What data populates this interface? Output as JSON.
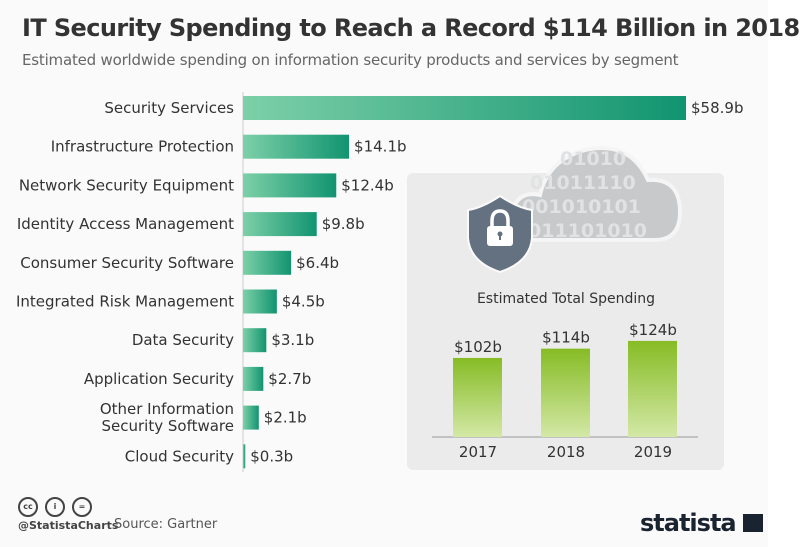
{
  "title": "IT Security Spending to Reach a Record $114 Billion in 2018",
  "subtitle": "Estimated worldwide spending on information security products and services by segment",
  "chart_data": [
    {
      "type": "bar",
      "orientation": "horizontal",
      "categories": [
        "Security Services",
        "Infrastructure Protection",
        "Network Security Equipment",
        "Identity Access Management",
        "Consumer Security Software",
        "Integrated Risk Management",
        "Data Security",
        "Application Security",
        "Other Information Security Software",
        "Cloud Security"
      ],
      "category_lines": [
        [
          "Security Services"
        ],
        [
          "Infrastructure Protection"
        ],
        [
          "Network Security Equipment"
        ],
        [
          "Identity Access Management"
        ],
        [
          "Consumer Security Software"
        ],
        [
          "Integrated Risk Management"
        ],
        [
          "Data Security"
        ],
        [
          "Application Security"
        ],
        [
          "Other Information",
          "Security Software"
        ],
        [
          "Cloud Security"
        ]
      ],
      "values": [
        58.9,
        14.1,
        12.4,
        9.8,
        6.4,
        4.5,
        3.1,
        2.7,
        2.1,
        0.3
      ],
      "data_labels": [
        "$58.9b",
        "$14.1b",
        "$12.4b",
        "$9.8b",
        "$6.4b",
        "$4.5b",
        "$3.1b",
        "$2.7b",
        "$2.1b",
        "$0.3b"
      ],
      "unit": "billion USD",
      "color": "#1a9b77"
    },
    {
      "type": "bar",
      "title": "Estimated Total Spending",
      "categories": [
        "2017",
        "2018",
        "2019"
      ],
      "values": [
        102,
        114,
        124
      ],
      "data_labels": [
        "$102b",
        "$114b",
        "$124b"
      ],
      "color": "#86bc25"
    }
  ],
  "footer": {
    "handle": "@StatistaCharts",
    "source": "Source: Gartner",
    "logo": "statista",
    "license_icons": [
      "cc",
      "by",
      "nd"
    ]
  },
  "cloud_binary": [
    "01010",
    "01011110",
    "001010101",
    "011101010"
  ]
}
